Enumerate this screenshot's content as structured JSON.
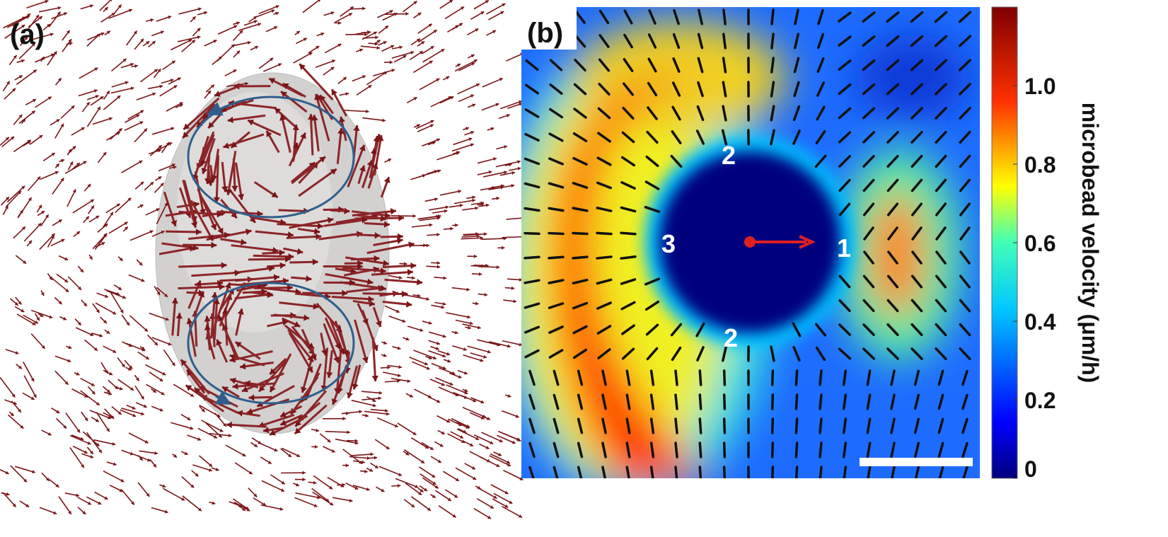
{
  "panels": {
    "a": {
      "label": "(a)"
    },
    "b": {
      "label": "(b)",
      "points": [
        "2",
        "3",
        "1",
        "2"
      ]
    }
  },
  "colorbar": {
    "label": "microbead velocity (μm/h)",
    "lim": [
      0,
      1.2
    ],
    "ticks": [
      0,
      0.2,
      0.4,
      0.6,
      0.8,
      {
        "value": 1,
        "label": "1.0"
      }
    ]
  }
}
